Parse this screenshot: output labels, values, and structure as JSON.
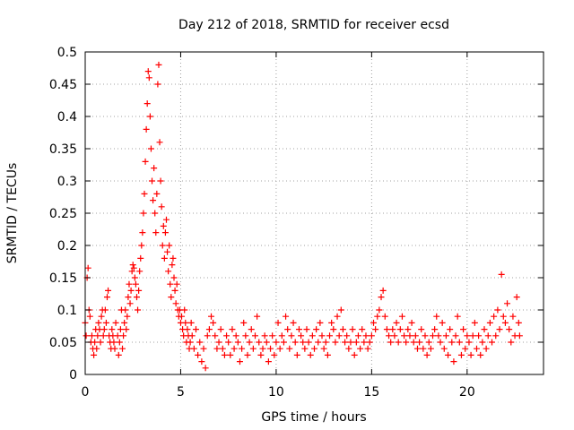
{
  "chart_data": {
    "type": "scatter",
    "title": "Day 212 of 2018, SRMTID for receiver ecsd",
    "xlabel": "GPS time / hours",
    "ylabel": "SRMTID / TECUs",
    "xlim": [
      0,
      24
    ],
    "ylim": [
      0,
      0.5
    ],
    "xticks": [
      0,
      5,
      10,
      15,
      20
    ],
    "yticks": [
      0,
      0.05,
      0.1,
      0.15,
      0.2,
      0.25,
      0.3,
      0.35,
      0.4,
      0.45,
      0.5
    ],
    "grid": true,
    "marker": "plus",
    "series": [
      {
        "name": "SRMTID",
        "color": "#ff0000",
        "points": [
          [
            0.0,
            0.08
          ],
          [
            0.05,
            0.06
          ],
          [
            0.1,
            0.15
          ],
          [
            0.15,
            0.165
          ],
          [
            0.2,
            0.1
          ],
          [
            0.25,
            0.09
          ],
          [
            0.3,
            0.05
          ],
          [
            0.35,
            0.06
          ],
          [
            0.4,
            0.04
          ],
          [
            0.45,
            0.03
          ],
          [
            0.5,
            0.05
          ],
          [
            0.55,
            0.07
          ],
          [
            0.6,
            0.04
          ],
          [
            0.65,
            0.06
          ],
          [
            0.7,
            0.08
          ],
          [
            0.75,
            0.07
          ],
          [
            0.8,
            0.05
          ],
          [
            0.85,
            0.09
          ],
          [
            0.9,
            0.1
          ],
          [
            0.95,
            0.06
          ],
          [
            1.0,
            0.07
          ],
          [
            1.05,
            0.1
          ],
          [
            1.1,
            0.08
          ],
          [
            1.15,
            0.12
          ],
          [
            1.2,
            0.13
          ],
          [
            1.25,
            0.06
          ],
          [
            1.3,
            0.05
          ],
          [
            1.35,
            0.04
          ],
          [
            1.4,
            0.07
          ],
          [
            1.45,
            0.06
          ],
          [
            1.5,
            0.05
          ],
          [
            1.55,
            0.04
          ],
          [
            1.6,
            0.08
          ],
          [
            1.7,
            0.06
          ],
          [
            1.75,
            0.03
          ],
          [
            1.8,
            0.05
          ],
          [
            1.85,
            0.07
          ],
          [
            1.9,
            0.1
          ],
          [
            1.95,
            0.04
          ],
          [
            2.0,
            0.06
          ],
          [
            2.05,
            0.08
          ],
          [
            2.1,
            0.1
          ],
          [
            2.15,
            0.07
          ],
          [
            2.2,
            0.09
          ],
          [
            2.25,
            0.12
          ],
          [
            2.3,
            0.14
          ],
          [
            2.35,
            0.11
          ],
          [
            2.4,
            0.13
          ],
          [
            2.45,
            0.16
          ],
          [
            2.5,
            0.17
          ],
          [
            2.55,
            0.165
          ],
          [
            2.6,
            0.15
          ],
          [
            2.65,
            0.14
          ],
          [
            2.7,
            0.12
          ],
          [
            2.75,
            0.1
          ],
          [
            2.8,
            0.13
          ],
          [
            2.85,
            0.16
          ],
          [
            2.9,
            0.18
          ],
          [
            2.95,
            0.2
          ],
          [
            3.0,
            0.22
          ],
          [
            3.05,
            0.25
          ],
          [
            3.1,
            0.28
          ],
          [
            3.15,
            0.33
          ],
          [
            3.2,
            0.38
          ],
          [
            3.25,
            0.42
          ],
          [
            3.3,
            0.47
          ],
          [
            3.35,
            0.46
          ],
          [
            3.4,
            0.4
          ],
          [
            3.45,
            0.35
          ],
          [
            3.5,
            0.3
          ],
          [
            3.55,
            0.27
          ],
          [
            3.6,
            0.32
          ],
          [
            3.65,
            0.25
          ],
          [
            3.7,
            0.22
          ],
          [
            3.75,
            0.28
          ],
          [
            3.8,
            0.45
          ],
          [
            3.85,
            0.48
          ],
          [
            3.9,
            0.36
          ],
          [
            3.95,
            0.3
          ],
          [
            4.0,
            0.26
          ],
          [
            4.05,
            0.2
          ],
          [
            4.1,
            0.23
          ],
          [
            4.15,
            0.18
          ],
          [
            4.2,
            0.22
          ],
          [
            4.25,
            0.24
          ],
          [
            4.3,
            0.19
          ],
          [
            4.35,
            0.16
          ],
          [
            4.4,
            0.2
          ],
          [
            4.45,
            0.14
          ],
          [
            4.5,
            0.12
          ],
          [
            4.55,
            0.17
          ],
          [
            4.6,
            0.18
          ],
          [
            4.65,
            0.15
          ],
          [
            4.7,
            0.13
          ],
          [
            4.75,
            0.11
          ],
          [
            4.8,
            0.14
          ],
          [
            4.85,
            0.1
          ],
          [
            4.9,
            0.09
          ],
          [
            4.95,
            0.1
          ],
          [
            5.0,
            0.08
          ],
          [
            5.05,
            0.09
          ],
          [
            5.1,
            0.07
          ],
          [
            5.15,
            0.06
          ],
          [
            5.2,
            0.1
          ],
          [
            5.25,
            0.08
          ],
          [
            5.3,
            0.05
          ],
          [
            5.35,
            0.07
          ],
          [
            5.4,
            0.06
          ],
          [
            5.45,
            0.04
          ],
          [
            5.5,
            0.05
          ],
          [
            5.55,
            0.08
          ],
          [
            5.6,
            0.06
          ],
          [
            5.7,
            0.04
          ],
          [
            5.8,
            0.07
          ],
          [
            5.9,
            0.03
          ],
          [
            6.0,
            0.05
          ],
          [
            6.1,
            0.02
          ],
          [
            6.2,
            0.04
          ],
          [
            6.3,
            0.01
          ],
          [
            6.4,
            0.06
          ],
          [
            6.5,
            0.07
          ],
          [
            6.6,
            0.09
          ],
          [
            6.7,
            0.08
          ],
          [
            6.8,
            0.06
          ],
          [
            6.9,
            0.04
          ],
          [
            7.0,
            0.05
          ],
          [
            7.1,
            0.07
          ],
          [
            7.2,
            0.04
          ],
          [
            7.3,
            0.03
          ],
          [
            7.4,
            0.06
          ],
          [
            7.5,
            0.05
          ],
          [
            7.6,
            0.03
          ],
          [
            7.7,
            0.07
          ],
          [
            7.8,
            0.04
          ],
          [
            7.9,
            0.06
          ],
          [
            8.0,
            0.05
          ],
          [
            8.1,
            0.02
          ],
          [
            8.2,
            0.04
          ],
          [
            8.3,
            0.08
          ],
          [
            8.4,
            0.06
          ],
          [
            8.5,
            0.03
          ],
          [
            8.6,
            0.05
          ],
          [
            8.7,
            0.07
          ],
          [
            8.8,
            0.04
          ],
          [
            8.9,
            0.06
          ],
          [
            9.0,
            0.09
          ],
          [
            9.1,
            0.05
          ],
          [
            9.2,
            0.03
          ],
          [
            9.3,
            0.04
          ],
          [
            9.4,
            0.06
          ],
          [
            9.5,
            0.05
          ],
          [
            9.6,
            0.02
          ],
          [
            9.7,
            0.04
          ],
          [
            9.8,
            0.06
          ],
          [
            9.9,
            0.03
          ],
          [
            10.0,
            0.05
          ],
          [
            10.1,
            0.08
          ],
          [
            10.2,
            0.04
          ],
          [
            10.3,
            0.06
          ],
          [
            10.4,
            0.05
          ],
          [
            10.5,
            0.09
          ],
          [
            10.6,
            0.07
          ],
          [
            10.7,
            0.04
          ],
          [
            10.8,
            0.06
          ],
          [
            10.9,
            0.08
          ],
          [
            11.0,
            0.05
          ],
          [
            11.1,
            0.03
          ],
          [
            11.2,
            0.07
          ],
          [
            11.3,
            0.06
          ],
          [
            11.4,
            0.05
          ],
          [
            11.5,
            0.04
          ],
          [
            11.6,
            0.07
          ],
          [
            11.7,
            0.05
          ],
          [
            11.8,
            0.03
          ],
          [
            11.9,
            0.06
          ],
          [
            12.0,
            0.04
          ],
          [
            12.1,
            0.07
          ],
          [
            12.2,
            0.05
          ],
          [
            12.3,
            0.08
          ],
          [
            12.4,
            0.06
          ],
          [
            12.5,
            0.04
          ],
          [
            12.6,
            0.05
          ],
          [
            12.7,
            0.03
          ],
          [
            12.8,
            0.06
          ],
          [
            12.9,
            0.08
          ],
          [
            13.0,
            0.07
          ],
          [
            13.1,
            0.05
          ],
          [
            13.2,
            0.09
          ],
          [
            13.3,
            0.06
          ],
          [
            13.4,
            0.1
          ],
          [
            13.5,
            0.07
          ],
          [
            13.6,
            0.05
          ],
          [
            13.7,
            0.06
          ],
          [
            13.8,
            0.04
          ],
          [
            13.9,
            0.05
          ],
          [
            14.0,
            0.07
          ],
          [
            14.1,
            0.03
          ],
          [
            14.2,
            0.05
          ],
          [
            14.3,
            0.06
          ],
          [
            14.4,
            0.04
          ],
          [
            14.5,
            0.07
          ],
          [
            14.6,
            0.05
          ],
          [
            14.7,
            0.06
          ],
          [
            14.8,
            0.04
          ],
          [
            14.9,
            0.05
          ],
          [
            15.0,
            0.06
          ],
          [
            15.1,
            0.08
          ],
          [
            15.2,
            0.07
          ],
          [
            15.3,
            0.09
          ],
          [
            15.4,
            0.1
          ],
          [
            15.5,
            0.12
          ],
          [
            15.6,
            0.13
          ],
          [
            15.7,
            0.09
          ],
          [
            15.8,
            0.07
          ],
          [
            15.9,
            0.06
          ],
          [
            16.0,
            0.05
          ],
          [
            16.1,
            0.07
          ],
          [
            16.2,
            0.06
          ],
          [
            16.3,
            0.08
          ],
          [
            16.4,
            0.05
          ],
          [
            16.5,
            0.07
          ],
          [
            16.6,
            0.09
          ],
          [
            16.7,
            0.06
          ],
          [
            16.8,
            0.05
          ],
          [
            16.9,
            0.07
          ],
          [
            17.0,
            0.06
          ],
          [
            17.1,
            0.08
          ],
          [
            17.2,
            0.05
          ],
          [
            17.3,
            0.06
          ],
          [
            17.4,
            0.04
          ],
          [
            17.5,
            0.05
          ],
          [
            17.6,
            0.07
          ],
          [
            17.7,
            0.04
          ],
          [
            17.8,
            0.06
          ],
          [
            17.9,
            0.03
          ],
          [
            18.0,
            0.05
          ],
          [
            18.1,
            0.04
          ],
          [
            18.2,
            0.06
          ],
          [
            18.3,
            0.07
          ],
          [
            18.4,
            0.09
          ],
          [
            18.5,
            0.06
          ],
          [
            18.6,
            0.05
          ],
          [
            18.7,
            0.08
          ],
          [
            18.8,
            0.04
          ],
          [
            18.9,
            0.06
          ],
          [
            19.0,
            0.03
          ],
          [
            19.1,
            0.07
          ],
          [
            19.2,
            0.05
          ],
          [
            19.3,
            0.02
          ],
          [
            19.4,
            0.06
          ],
          [
            19.5,
            0.09
          ],
          [
            19.6,
            0.05
          ],
          [
            19.7,
            0.03
          ],
          [
            19.8,
            0.07
          ],
          [
            19.9,
            0.04
          ],
          [
            20.0,
            0.06
          ],
          [
            20.1,
            0.05
          ],
          [
            20.2,
            0.03
          ],
          [
            20.3,
            0.06
          ],
          [
            20.4,
            0.08
          ],
          [
            20.5,
            0.04
          ],
          [
            20.6,
            0.06
          ],
          [
            20.7,
            0.03
          ],
          [
            20.8,
            0.05
          ],
          [
            20.9,
            0.07
          ],
          [
            21.0,
            0.04
          ],
          [
            21.1,
            0.06
          ],
          [
            21.2,
            0.08
          ],
          [
            21.3,
            0.05
          ],
          [
            21.4,
            0.09
          ],
          [
            21.5,
            0.06
          ],
          [
            21.6,
            0.1
          ],
          [
            21.7,
            0.07
          ],
          [
            21.8,
            0.155
          ],
          [
            21.9,
            0.09
          ],
          [
            22.0,
            0.08
          ],
          [
            22.1,
            0.11
          ],
          [
            22.2,
            0.07
          ],
          [
            22.3,
            0.05
          ],
          [
            22.4,
            0.09
          ],
          [
            22.5,
            0.06
          ],
          [
            22.6,
            0.12
          ],
          [
            22.7,
            0.08
          ],
          [
            22.75,
            0.06
          ]
        ]
      }
    ]
  }
}
